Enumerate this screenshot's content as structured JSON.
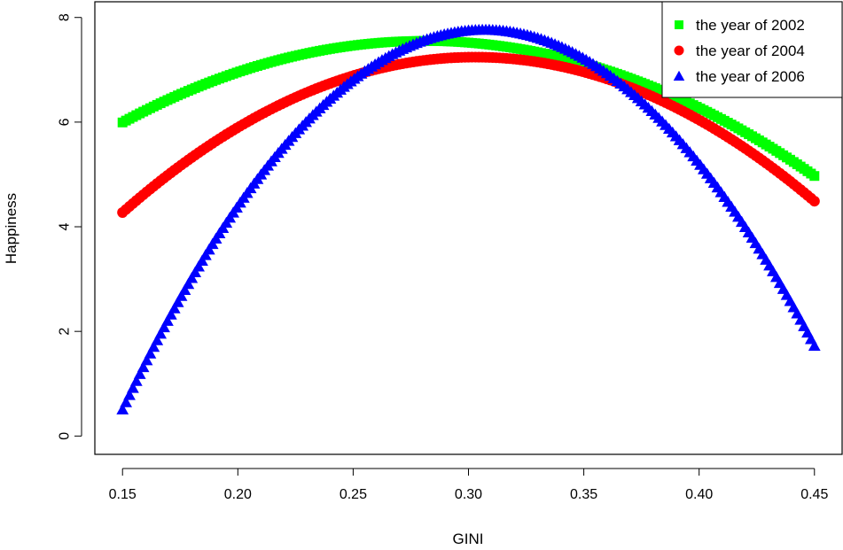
{
  "chart_data": {
    "type": "scatter",
    "xlabel": "GINI",
    "ylabel": "Happiness",
    "xlim": [
      0.138,
      0.462
    ],
    "ylim": [
      -0.35,
      8.3
    ],
    "x_ticks": [
      "0.15",
      "0.20",
      "0.25",
      "0.30",
      "0.35",
      "0.40",
      "0.45"
    ],
    "y_ticks": [
      "0",
      "2",
      "4",
      "6",
      "8"
    ],
    "legend_position": "top-right",
    "series": [
      {
        "name": "the year of 2002",
        "color": "#00ff00",
        "marker": "square",
        "x": [
          0.15,
          0.175,
          0.2,
          0.225,
          0.25,
          0.275,
          0.3,
          0.325,
          0.35,
          0.375,
          0.4,
          0.425,
          0.45
        ],
        "values": [
          5.98,
          6.53,
          6.96,
          7.27,
          7.47,
          7.56,
          7.53,
          7.38,
          7.12,
          6.74,
          6.25,
          5.64,
          5.02
        ]
      },
      {
        "name": "the year of 2004",
        "color": "#ff0000",
        "marker": "circle",
        "x": [
          0.15,
          0.175,
          0.2,
          0.225,
          0.25,
          0.275,
          0.3,
          0.325,
          0.35,
          0.375,
          0.4,
          0.425,
          0.45
        ],
        "values": [
          4.3,
          5.18,
          5.89,
          6.44,
          6.86,
          7.12,
          7.22,
          7.18,
          6.98,
          6.64,
          6.08,
          5.36,
          4.42
        ]
      },
      {
        "name": "the year of 2006",
        "color": "#0000ff",
        "marker": "triangle",
        "x": [
          0.15,
          0.175,
          0.2,
          0.225,
          0.25,
          0.275,
          0.3,
          0.31,
          0.325,
          0.35,
          0.375,
          0.4,
          0.425,
          0.45
        ],
        "values": [
          0.55,
          2.65,
          4.35,
          5.75,
          6.8,
          7.45,
          7.75,
          7.78,
          7.7,
          7.2,
          6.4,
          5.25,
          3.7,
          1.65
        ]
      }
    ]
  }
}
